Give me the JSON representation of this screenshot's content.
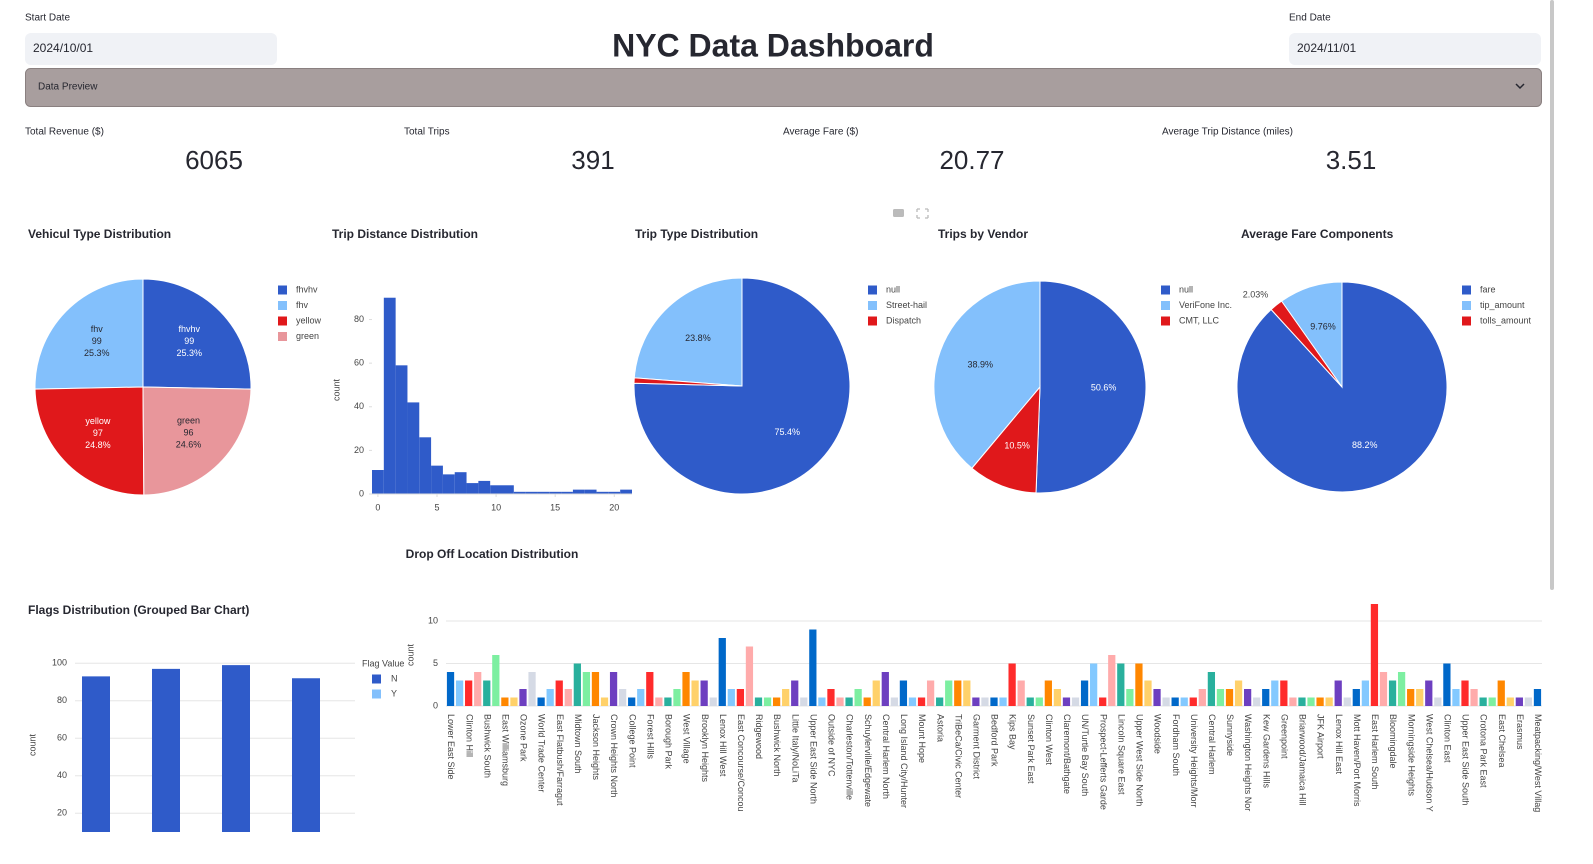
{
  "header": {
    "title": "NYC Data Dashboard"
  },
  "filters": {
    "start_label": "Start Date",
    "start_value": "2024/10/01",
    "end_label": "End Date",
    "end_value": "2024/11/01"
  },
  "expander": {
    "label": "Data Preview"
  },
  "metrics": [
    {
      "label": "Total Revenue ($)",
      "value": 6065
    },
    {
      "label": "Total Trips",
      "value": 391
    },
    {
      "label": "Average Fare ($)",
      "value": 20.77
    },
    {
      "label": "Average Trip Distance (miles)",
      "value": 3.51
    }
  ],
  "chart_data": [
    {
      "type": "pie",
      "title": "Vehicul Type Distribution",
      "categories": [
        "fhvhv",
        "fhv",
        "yellow",
        "green"
      ],
      "values": [
        99,
        99,
        97,
        96
      ],
      "percent_labels": [
        "25.3%",
        "25.3%",
        "24.8%",
        "24.6%"
      ],
      "colors": [
        "#2f5bc9",
        "#83c0fc",
        "#e0181b",
        "#e8969b"
      ]
    },
    {
      "type": "histogram",
      "title": "Trip Distance Distribution",
      "bins": [
        -0.5,
        0.5,
        1.5,
        2.5,
        3.5,
        4.5,
        5.5,
        6.5,
        7.5,
        8.5,
        9.5,
        10.5,
        11.5,
        12.5,
        13.5,
        14.5,
        15.5,
        16.5,
        17.5,
        18.5,
        19.5,
        20.5,
        21.5
      ],
      "counts": [
        11,
        90,
        59,
        42,
        26,
        13,
        9,
        10,
        5,
        6,
        4,
        4,
        1,
        1,
        1,
        1,
        1,
        2,
        2,
        1,
        1,
        2
      ],
      "color": "#2f5bc9",
      "xlim": [
        -0.5,
        21.5
      ],
      "ylim": [
        0,
        94
      ],
      "xticks": [
        0,
        5,
        10,
        15,
        20
      ],
      "yticks": [
        0,
        20,
        40,
        60,
        80
      ],
      "y_label": "count"
    },
    {
      "type": "pie",
      "title": "Trip Type Distribution",
      "categories": [
        "null",
        "Street-hail",
        "Dispatch"
      ],
      "values": [
        75.4,
        23.8,
        0.8
      ],
      "value_labels": [
        "75.4%",
        "23.8%",
        null
      ],
      "colors": [
        "#2f5bc9",
        "#83c0fc",
        "#e0181b"
      ]
    },
    {
      "type": "pie",
      "title": "Trips by Vendor",
      "categories": [
        "null",
        "VeriFone Inc.",
        "CMT, LLC"
      ],
      "values": [
        50.6,
        38.9,
        10.5
      ],
      "value_labels": [
        "50.6%",
        "38.9%",
        "10.5%"
      ],
      "colors": [
        "#2f5bc9",
        "#83c0fc",
        "#e0181b"
      ]
    },
    {
      "type": "pie",
      "title": "Average Fare Components",
      "categories": [
        "fare",
        "tip_amount",
        "tolls_amount"
      ],
      "values": [
        88.2,
        9.76,
        2.03
      ],
      "value_labels": [
        "88.2%",
        "9.76%",
        "2.03%"
      ],
      "colors": [
        "#2f5bc9",
        "#83c0fc",
        "#e0181b"
      ]
    },
    {
      "type": "bar",
      "title": "Drop Off Location Distribution",
      "categories": [
        "Lower East Side",
        null,
        "Clinton Hill",
        null,
        "Bushwick South",
        null,
        "East Williamsburg",
        null,
        "Ozone Park",
        null,
        "World Trade Center",
        null,
        "East Flatbush/Farragut",
        null,
        "Midtown South",
        null,
        "Jackson Heights",
        null,
        "Crown Heights North",
        null,
        "College Point",
        null,
        "Forest Hills",
        null,
        "Borough Park",
        null,
        "West Village",
        null,
        "Brooklyn Heights",
        null,
        "Lenox Hill West",
        null,
        "East Concourse/Concou",
        null,
        "Ridgewood",
        null,
        "Bushwick North",
        null,
        "Little Italy/NoLiTa",
        null,
        "Upper East Side North",
        null,
        "Outside of NYC",
        null,
        "Charleston/Tottenville",
        null,
        "Schuylerville/Edgewate",
        null,
        "Central Harlem North",
        null,
        "Long Island City/Hunter",
        null,
        "Mount Hope",
        null,
        "Astoria",
        null,
        "TriBeCa/Civic Center",
        null,
        "Garment District",
        null,
        "Bedford Park",
        null,
        "Kips Bay",
        null,
        "Sunset Park East",
        null,
        "Clinton West",
        null,
        "Claremont/Bathgate",
        null,
        "UN/Turtle Bay South",
        null,
        "Prospect-Lefferts Garde",
        null,
        "Lincoln Square East",
        null,
        "Upper West Side North",
        null,
        "Woodside",
        null,
        "Fordham South",
        null,
        "University Heights/Morr",
        null,
        "Central Harlem",
        null,
        "Sunnyside",
        null,
        "Washington Heights Nor",
        null,
        "Kew Gardens Hills",
        null,
        "Greenpoint",
        null,
        "Briarwood/Jamaica Hill",
        null,
        "JFK Airport",
        null,
        "Lenox Hill East",
        null,
        "Mott Haven/Port Morris",
        null,
        "East Harlem South",
        null,
        "Bloomingdale",
        null,
        "Morningside Heights",
        null,
        "West Chelsea/Hudson Y",
        null,
        "Clinton East",
        null,
        "Upper East Side South",
        null,
        "Crotona Park East",
        null,
        "East Chelsea",
        null,
        "Erasmus",
        null,
        "Meatpacking/West Villag"
      ],
      "values": [
        4,
        3,
        3,
        4,
        3,
        6,
        1,
        1,
        2,
        4,
        1,
        2,
        3,
        2,
        5,
        4,
        4,
        1,
        4,
        2,
        1,
        2,
        4,
        1,
        1,
        2,
        4,
        3,
        3,
        1,
        8,
        2,
        2,
        7,
        1,
        1,
        1,
        2,
        3,
        1,
        9,
        1,
        2,
        1,
        1,
        2,
        1,
        3,
        4,
        1,
        3,
        1,
        1,
        3,
        1,
        3,
        3,
        3,
        1,
        1,
        1,
        1,
        5,
        3,
        1,
        1,
        3,
        2,
        1,
        1,
        3,
        5,
        1,
        6,
        5,
        2,
        5,
        3,
        2,
        1,
        1,
        1,
        1,
        2,
        4,
        2,
        2,
        3,
        2,
        1,
        2,
        3,
        3,
        1,
        1,
        1,
        1,
        1,
        3,
        1,
        2,
        3,
        12,
        4,
        3,
        4,
        2,
        2,
        3,
        1,
        5,
        2,
        3,
        2,
        1,
        1,
        3,
        1,
        1,
        1,
        2
      ],
      "palette": [
        "#0068c9",
        "#83c9ff",
        "#ff2b2b",
        "#ffabab",
        "#29b09d",
        "#7defa1",
        "#ff8700",
        "#ffd16a",
        "#6d3fc0",
        "#d5dae5"
      ],
      "ylim": [
        0,
        12
      ],
      "yticks": [
        0,
        5,
        10
      ],
      "y_label": "count",
      "grid": true
    },
    {
      "type": "bar",
      "title": "Flags Distribution (Grouped Bar Chart)",
      "categories": [
        null,
        null,
        null,
        null
      ],
      "series": [
        {
          "name": "N",
          "color": "#2f5bc9",
          "values": [
            93,
            97,
            99,
            92
          ]
        },
        {
          "name": "Y",
          "color": "#83c0fc",
          "values": [
            null,
            null,
            null,
            null
          ]
        }
      ],
      "legend_title": "Flag Value",
      "ylim": [
        10,
        106
      ],
      "yticks": [
        20,
        40,
        60,
        80,
        100
      ],
      "y_label": "count",
      "grid": true
    }
  ]
}
